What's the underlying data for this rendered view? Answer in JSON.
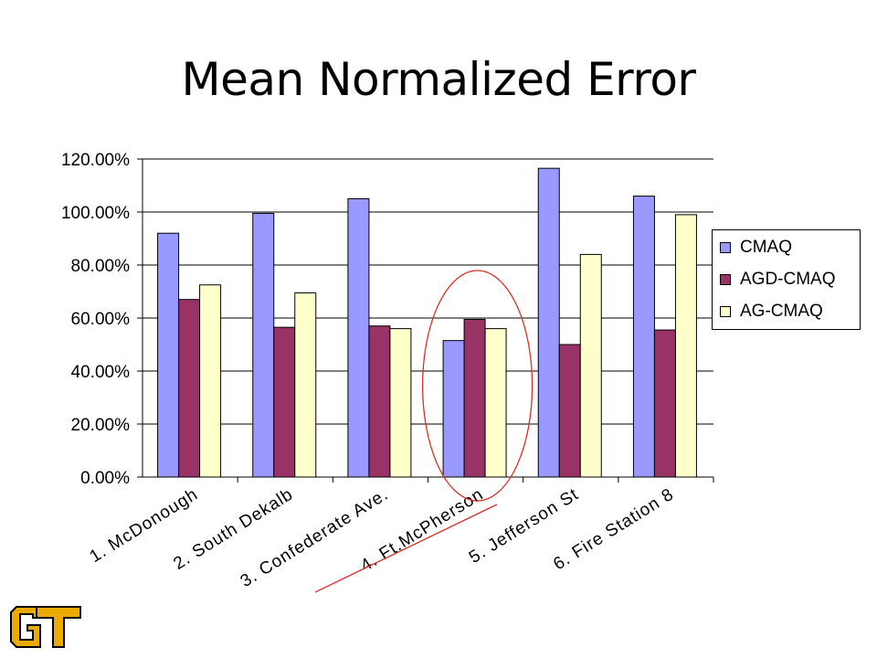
{
  "slide": {
    "title": "Mean Normalized Error"
  },
  "chart_data": {
    "type": "bar",
    "categories": [
      "1. McDonough",
      "2. South Dekalb",
      "3. Confederate Ave.",
      "4. Ft.McPherson",
      "5. Jefferson St",
      "6. Fire Station 8"
    ],
    "series": [
      {
        "name": "CMAQ",
        "color": "#9999ff",
        "values": [
          92,
          99.5,
          105,
          51.5,
          116.5,
          106
        ]
      },
      {
        "name": "AGD-CMAQ",
        "color": "#993366",
        "values": [
          67,
          56.5,
          57,
          59.5,
          50,
          55.5
        ]
      },
      {
        "name": "AG-CMAQ",
        "color": "#ffffcc",
        "values": [
          72.5,
          69.5,
          56,
          56,
          84,
          99
        ]
      }
    ],
    "ylim": [
      0,
      120
    ],
    "yticks": [
      "0.00%",
      "20.00%",
      "40.00%",
      "60.00%",
      "80.00%",
      "100.00%",
      "120.00%"
    ],
    "ytick_values": [
      0,
      20,
      40,
      60,
      80,
      100,
      120
    ],
    "grid": true,
    "legend_position": "right",
    "annotations": [
      "red circle around 4. Ft.McPherson bars",
      "red underline under 4. Ft.McPherson label"
    ]
  },
  "logo": {
    "text": "GT",
    "color": "#eaaa00",
    "outline": "#000000"
  }
}
